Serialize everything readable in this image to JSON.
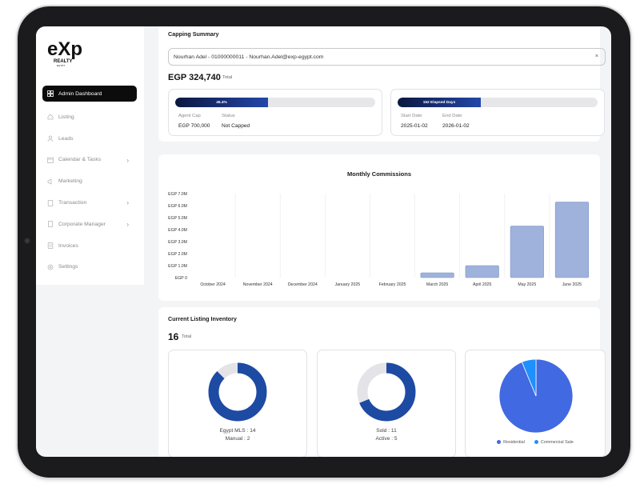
{
  "brand": {
    "logo_main": "eXp",
    "logo_sub": "REALTY",
    "logo_sub2": "EGYPT"
  },
  "sidebar": {
    "items": [
      {
        "label": "Admin Dashboard",
        "icon": "grid-icon",
        "active": true
      },
      {
        "label": "Listing",
        "icon": "home-icon"
      },
      {
        "label": "Leads",
        "icon": "users-icon"
      },
      {
        "label": "Calendar & Tasks",
        "icon": "calendar-icon",
        "chevron": true
      },
      {
        "label": "Marketing",
        "icon": "megaphone-icon"
      },
      {
        "label": "Transaction",
        "icon": "document-icon",
        "chevron": true
      },
      {
        "label": "Corporate Manager",
        "icon": "building-icon",
        "chevron": true
      },
      {
        "label": "Invoices",
        "icon": "invoice-icon"
      },
      {
        "label": "Settings",
        "icon": "gear-icon"
      }
    ]
  },
  "capping": {
    "title": "Capping Summary",
    "selected_agent": "Nourhan Adel - 01000000011 - Nourhan.Adel@exp-egypt.com",
    "clear_icon": "×",
    "total_amount": "EGP 324,740",
    "total_label": "Total",
    "cap_progress_label": "46.4%",
    "cap_progress": 0.464,
    "agent_cap_label": "Agent Cap",
    "agent_cap_value": "EGP 700,000",
    "status_label": "Status",
    "status_value": "Not Capped",
    "days_progress_label": "152 Elapsed Days",
    "days_progress": 0.416,
    "start_date_label": "Start Date",
    "start_date_value": "2025-01-02",
    "end_date_label": "End Date",
    "end_date_value": "2026-01-02"
  },
  "chart_data": {
    "type": "bar",
    "title": "Monthly Commissions",
    "categories": [
      "October 2024",
      "November 2024",
      "December 2024",
      "January 2025",
      "February 2025",
      "March 2025",
      "April 2025",
      "May 2025",
      "June 2025"
    ],
    "values": [
      0,
      0,
      0,
      0,
      0,
      0.4,
      1.0,
      4.3,
      6.3
    ],
    "ylim": [
      0,
      7
    ],
    "y_ticks": [
      0,
      1,
      2,
      3,
      4,
      5,
      6,
      7
    ],
    "y_tick_labels": [
      "EGP 0",
      "EGP 1.0M",
      "EGP 2.0M",
      "EGP 3.0M",
      "EGP 4.0M",
      "EGP 5.0M",
      "EGP 6.0M",
      "EGP 7.0M"
    ],
    "bar_color": "#9fb2dc",
    "bar_stroke": "#7f93c4",
    "grid": true
  },
  "inventory": {
    "title": "Current Listing Inventory",
    "count": "16",
    "total_label": "Total",
    "donut1": {
      "line1": "Egypt MLS : 14",
      "line2": "Manual : 2",
      "fraction": 0.875
    },
    "donut2": {
      "line1": "Sold : 11",
      "line2": "Active : 5",
      "fraction": 0.6875
    },
    "pie": {
      "legend": [
        "Residential",
        "Commercial Sale"
      ],
      "fractions": [
        0.9375,
        0.0625
      ],
      "colors": [
        "#4169e1",
        "#1e90ff"
      ]
    },
    "donut_color": "#1d4aa3",
    "donut_bg": "#e4e4e8"
  }
}
